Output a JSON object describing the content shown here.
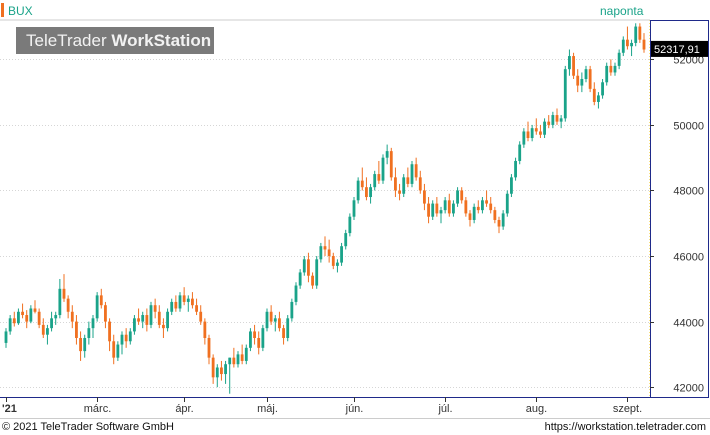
{
  "header": {
    "symbol": "BUX",
    "period": "naponta",
    "brand_light": "TeleTrader",
    "brand_bold": "WorkStation"
  },
  "last_price_label": "52317,91",
  "footer": {
    "copyright": "© 2021 TeleTrader Software GmbH",
    "url": "https://workstation.teletrader.com"
  },
  "colors": {
    "up": "#1aa389",
    "down": "#f07020",
    "grid": "#d6d6d6",
    "axis_frame": "#1f2a8a",
    "price_line": "#f0c000"
  },
  "chart_data": {
    "type": "candlestick",
    "title": "BUX",
    "ylim": [
      41700,
      53200
    ],
    "y_ticks": [
      {
        "value": 42000,
        "label": "42000"
      },
      {
        "value": 44000,
        "label": "44000"
      },
      {
        "value": 46000,
        "label": "46000"
      },
      {
        "value": 48000,
        "label": "48000"
      },
      {
        "value": 50000,
        "label": "50000"
      },
      {
        "value": 52000,
        "label": "52000"
      }
    ],
    "x_ticks": [
      {
        "index": 0,
        "label": "'21"
      },
      {
        "index": 22,
        "label": "márc."
      },
      {
        "index": 43,
        "label": "ápr."
      },
      {
        "index": 63,
        "label": "máj."
      },
      {
        "index": 84,
        "label": "jún."
      },
      {
        "index": 106,
        "label": "júl."
      },
      {
        "index": 128,
        "label": "aug."
      },
      {
        "index": 150,
        "label": "szept."
      }
    ],
    "last_value": 52317.91,
    "candles": [
      [
        43350,
        43800,
        43200,
        43700
      ],
      [
        43700,
        44200,
        43600,
        44100
      ],
      [
        44100,
        44300,
        43850,
        43950
      ],
      [
        43950,
        44400,
        43900,
        44300
      ],
      [
        44300,
        44550,
        44100,
        44200
      ],
      [
        44200,
        44350,
        43800,
        44000
      ],
      [
        44000,
        44500,
        43950,
        44400
      ],
      [
        44400,
        44650,
        44250,
        44300
      ],
      [
        44300,
        44400,
        43800,
        43900
      ],
      [
        43900,
        44100,
        43500,
        43600
      ],
      [
        43600,
        43900,
        43300,
        43800
      ],
      [
        43800,
        44300,
        43700,
        44100
      ],
      [
        44100,
        44300,
        43900,
        44200
      ],
      [
        44200,
        45300,
        44100,
        45000
      ],
      [
        45000,
        45450,
        44600,
        44700
      ],
      [
        44700,
        44800,
        44100,
        44300
      ],
      [
        44300,
        44500,
        43800,
        44000
      ],
      [
        44000,
        44200,
        43300,
        43500
      ],
      [
        43500,
        43700,
        42800,
        43100
      ],
      [
        43100,
        43600,
        42900,
        43500
      ],
      [
        43500,
        44000,
        43300,
        43800
      ],
      [
        43800,
        44200,
        43500,
        44100
      ],
      [
        44100,
        44900,
        44000,
        44800
      ],
      [
        44800,
        45000,
        44400,
        44500
      ],
      [
        44500,
        44600,
        43800,
        44000
      ],
      [
        44000,
        44100,
        43100,
        43400
      ],
      [
        43400,
        43600,
        42700,
        42900
      ],
      [
        42900,
        43400,
        42800,
        43300
      ],
      [
        43300,
        43700,
        43000,
        43600
      ],
      [
        43600,
        43800,
        43200,
        43400
      ],
      [
        43400,
        43800,
        43300,
        43700
      ],
      [
        43700,
        44200,
        43600,
        44100
      ],
      [
        44100,
        44400,
        43900,
        44000
      ],
      [
        44000,
        44300,
        43800,
        44200
      ],
      [
        44200,
        44400,
        43700,
        43900
      ],
      [
        43900,
        44600,
        43800,
        44500
      ],
      [
        44500,
        44700,
        44100,
        44300
      ],
      [
        44300,
        44500,
        43800,
        43900
      ],
      [
        43900,
        44100,
        43500,
        43800
      ],
      [
        43800,
        44400,
        43700,
        44300
      ],
      [
        44300,
        44700,
        44200,
        44600
      ],
      [
        44600,
        44800,
        44300,
        44400
      ],
      [
        44400,
        44900,
        44300,
        44800
      ],
      [
        44800,
        45050,
        44500,
        44600
      ],
      [
        44600,
        44800,
        44300,
        44700
      ],
      [
        44700,
        44900,
        44400,
        44500
      ],
      [
        44500,
        44700,
        44200,
        44300
      ],
      [
        44300,
        44500,
        43900,
        44000
      ],
      [
        44000,
        44100,
        43300,
        43500
      ],
      [
        43500,
        43600,
        42700,
        42900
      ],
      [
        42900,
        43000,
        42100,
        42300
      ],
      [
        42300,
        42700,
        42000,
        42600
      ],
      [
        42600,
        42800,
        42200,
        42400
      ],
      [
        42400,
        42800,
        42100,
        42700
      ],
      [
        42700,
        42900,
        41800,
        42900
      ],
      [
        42900,
        43200,
        42600,
        42700
      ],
      [
        42700,
        43100,
        42600,
        43000
      ],
      [
        43000,
        43300,
        42700,
        42800
      ],
      [
        42800,
        43300,
        42700,
        43200
      ],
      [
        43200,
        43800,
        43100,
        43700
      ],
      [
        43700,
        43900,
        43300,
        43500
      ],
      [
        43500,
        43700,
        43000,
        43200
      ],
      [
        43200,
        43900,
        43100,
        43800
      ],
      [
        43800,
        44400,
        43700,
        44300
      ],
      [
        44300,
        44500,
        43900,
        44000
      ],
      [
        44000,
        44200,
        43700,
        44100
      ],
      [
        44100,
        44300,
        43700,
        43800
      ],
      [
        43800,
        43900,
        43300,
        43500
      ],
      [
        43500,
        44200,
        43400,
        44100
      ],
      [
        44100,
        44700,
        44000,
        44600
      ],
      [
        44600,
        45200,
        44500,
        45100
      ],
      [
        45100,
        45600,
        45000,
        45500
      ],
      [
        45500,
        46000,
        45400,
        45900
      ],
      [
        45900,
        46100,
        45200,
        45400
      ],
      [
        45400,
        45500,
        45000,
        45100
      ],
      [
        45100,
        46000,
        45000,
        45900
      ],
      [
        45900,
        46400,
        45800,
        46300
      ],
      [
        46300,
        46600,
        46000,
        46200
      ],
      [
        46200,
        46500,
        45800,
        46000
      ],
      [
        46000,
        46100,
        45600,
        45700
      ],
      [
        45700,
        45900,
        45500,
        45800
      ],
      [
        45800,
        46400,
        45700,
        46300
      ],
      [
        46300,
        46800,
        46200,
        46700
      ],
      [
        46700,
        47300,
        46600,
        47200
      ],
      [
        47200,
        47800,
        47100,
        47700
      ],
      [
        47700,
        48400,
        47600,
        48300
      ],
      [
        48300,
        48700,
        48000,
        48100
      ],
      [
        48100,
        48400,
        47700,
        47800
      ],
      [
        47800,
        48200,
        47600,
        48100
      ],
      [
        48100,
        48600,
        48000,
        48500
      ],
      [
        48500,
        48900,
        48200,
        48300
      ],
      [
        48300,
        49100,
        48200,
        49000
      ],
      [
        49000,
        49400,
        48800,
        49200
      ],
      [
        49200,
        49300,
        48300,
        48400
      ],
      [
        48400,
        48700,
        47800,
        48000
      ],
      [
        48000,
        48200,
        47700,
        47900
      ],
      [
        47900,
        48500,
        47800,
        48400
      ],
      [
        48400,
        48700,
        48100,
        48200
      ],
      [
        48200,
        48900,
        48100,
        48800
      ],
      [
        48800,
        49000,
        48300,
        48400
      ],
      [
        48400,
        48600,
        47900,
        48000
      ],
      [
        48000,
        48200,
        47400,
        47600
      ],
      [
        47600,
        47800,
        47000,
        47200
      ],
      [
        47200,
        47700,
        47100,
        47600
      ],
      [
        47600,
        47800,
        47200,
        47300
      ],
      [
        47300,
        47500,
        47000,
        47400
      ],
      [
        47400,
        47800,
        47300,
        47700
      ],
      [
        47700,
        47900,
        47200,
        47300
      ],
      [
        47300,
        47700,
        47200,
        47600
      ],
      [
        47600,
        48100,
        47500,
        48000
      ],
      [
        48000,
        48100,
        47600,
        47700
      ],
      [
        47700,
        47800,
        47200,
        47300
      ],
      [
        47300,
        47400,
        46900,
        47100
      ],
      [
        47100,
        47600,
        47000,
        47500
      ],
      [
        47500,
        47700,
        47300,
        47400
      ],
      [
        47400,
        47800,
        47300,
        47700
      ],
      [
        47700,
        48000,
        47500,
        47600
      ],
      [
        47600,
        47800,
        47300,
        47400
      ],
      [
        47400,
        47500,
        47000,
        47100
      ],
      [
        47100,
        47200,
        46700,
        46900
      ],
      [
        46900,
        47400,
        46800,
        47300
      ],
      [
        47300,
        48000,
        47200,
        47900
      ],
      [
        47900,
        48500,
        47800,
        48400
      ],
      [
        48400,
        49000,
        48300,
        48900
      ],
      [
        48900,
        49500,
        48800,
        49400
      ],
      [
        49400,
        49900,
        49300,
        49800
      ],
      [
        49800,
        50100,
        49500,
        49600
      ],
      [
        49600,
        50000,
        49500,
        49900
      ],
      [
        49900,
        50200,
        49700,
        49800
      ],
      [
        49800,
        50000,
        49600,
        49700
      ],
      [
        49700,
        50200,
        49600,
        50100
      ],
      [
        50100,
        50300,
        49900,
        50000
      ],
      [
        50000,
        50400,
        49900,
        50300
      ],
      [
        50300,
        50500,
        50000,
        50100
      ],
      [
        50100,
        50300,
        49900,
        50200
      ],
      [
        50200,
        51800,
        50100,
        51700
      ],
      [
        51700,
        52300,
        51500,
        52100
      ],
      [
        52100,
        52200,
        51400,
        51500
      ],
      [
        51500,
        51700,
        51000,
        51200
      ],
      [
        51200,
        51600,
        51000,
        51400
      ],
      [
        51400,
        51800,
        51300,
        51700
      ],
      [
        51700,
        51800,
        51000,
        51100
      ],
      [
        51100,
        51300,
        50600,
        50700
      ],
      [
        50700,
        51000,
        50500,
        50900
      ],
      [
        50900,
        51400,
        50800,
        51300
      ],
      [
        51300,
        51900,
        51200,
        51800
      ],
      [
        51800,
        52000,
        51500,
        51600
      ],
      [
        51600,
        51900,
        51500,
        51800
      ],
      [
        51800,
        52300,
        51700,
        52200
      ],
      [
        52200,
        52700,
        52100,
        52600
      ],
      [
        52600,
        53000,
        52300,
        52400
      ],
      [
        52400,
        52600,
        52100,
        52500
      ],
      [
        52500,
        53100,
        52400,
        53000
      ],
      [
        53000,
        53100,
        52500,
        52600
      ],
      [
        52600,
        52800,
        52200,
        52300
      ]
    ]
  }
}
